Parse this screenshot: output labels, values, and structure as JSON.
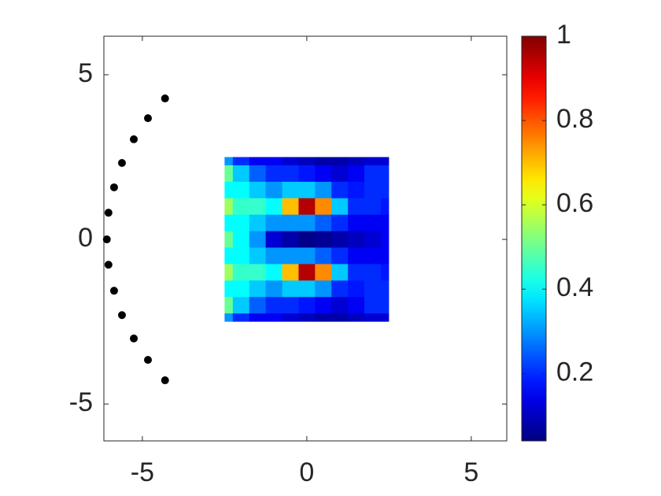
{
  "chart_data": {
    "type": "scatter",
    "xlim": [
      -6.17,
      6.08
    ],
    "ylim": [
      -6.12,
      6.17
    ],
    "xticks": [
      -5,
      0,
      5
    ],
    "yticks": [
      -5,
      0,
      5
    ],
    "series": [
      {
        "color": "#000000",
        "x": [
          -4.31,
          -4.83,
          -5.26,
          -5.62,
          -5.86,
          -6.03,
          -6.08,
          -6.03,
          -5.86,
          -5.62,
          -5.26,
          -4.83,
          -4.31
        ],
        "values": [
          4.28,
          3.68,
          3.04,
          2.32,
          1.58,
          0.81,
          0,
          -0.77,
          -1.56,
          -2.3,
          -3.01,
          -3.66,
          -4.28
        ]
      }
    ],
    "heatmap": {
      "type": "contour",
      "colormap": "jet",
      "clim": [
        0.04,
        1
      ],
      "colorbar_ticks": [
        0.2,
        0.4,
        0.6,
        0.8,
        1
      ],
      "x": [
        -2.5,
        -2,
        -1.5,
        -1,
        -0.5,
        0,
        0.5,
        1,
        1.5,
        2,
        2.5
      ],
      "y": [
        2.5,
        2,
        1.5,
        1,
        0.5,
        0,
        -0.5,
        -1,
        -1.5,
        -2,
        -2.5
      ],
      "z": [
        [
          0.3,
          0.2,
          0.15,
          0.15,
          0.12,
          0.1,
          0.08,
          0.08,
          0.1,
          0.12,
          0.12
        ],
        [
          0.5,
          0.35,
          0.25,
          0.2,
          0.2,
          0.18,
          0.15,
          0.12,
          0.15,
          0.2,
          0.2
        ],
        [
          0.4,
          0.4,
          0.35,
          0.3,
          0.35,
          0.35,
          0.3,
          0.2,
          0.18,
          0.2,
          0.2
        ],
        [
          0.55,
          0.45,
          0.45,
          0.4,
          0.7,
          0.95,
          0.75,
          0.35,
          0.2,
          0.2,
          0.18
        ],
        [
          0.4,
          0.4,
          0.35,
          0.3,
          0.3,
          0.3,
          0.25,
          0.2,
          0.15,
          0.15,
          0.15
        ],
        [
          0.5,
          0.4,
          0.3,
          0.12,
          0.08,
          0.05,
          0.06,
          0.08,
          0.1,
          0.12,
          0.15
        ],
        [
          0.4,
          0.4,
          0.35,
          0.3,
          0.3,
          0.3,
          0.25,
          0.2,
          0.15,
          0.15,
          0.15
        ],
        [
          0.55,
          0.45,
          0.45,
          0.4,
          0.7,
          0.95,
          0.75,
          0.35,
          0.2,
          0.2,
          0.18
        ],
        [
          0.4,
          0.4,
          0.35,
          0.3,
          0.35,
          0.35,
          0.3,
          0.2,
          0.18,
          0.2,
          0.2
        ],
        [
          0.5,
          0.35,
          0.25,
          0.2,
          0.2,
          0.18,
          0.15,
          0.12,
          0.15,
          0.2,
          0.2
        ],
        [
          0.3,
          0.2,
          0.15,
          0.15,
          0.12,
          0.1,
          0.08,
          0.08,
          0.1,
          0.12,
          0.12
        ]
      ]
    }
  }
}
